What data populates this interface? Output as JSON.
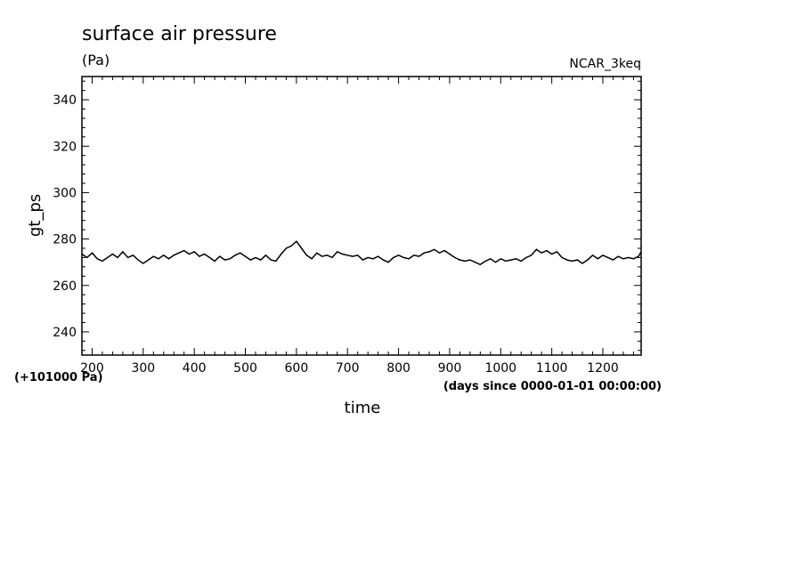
{
  "chart_data": {
    "type": "line",
    "title": "surface air pressure",
    "units": "(Pa)",
    "experiment": "NCAR_3keq",
    "xlabel": "time",
    "xunits": "(days since 0000-01-01 00:00:00)",
    "ylabel": "gt_ps",
    "yoffset_label": "(+101000 Pa)",
    "xlim": [
      180,
      1275
    ],
    "ylim": [
      230,
      350
    ],
    "xticks": [
      "200",
      "300",
      "400",
      "500",
      "600",
      "700",
      "800",
      "900",
      "1000",
      "1100",
      "1200"
    ],
    "yticks": [
      "240",
      "260",
      "280",
      "300",
      "320",
      "340"
    ],
    "grid": false,
    "series": [
      {
        "x": [
          180,
          190,
          200,
          210,
          220,
          230,
          240,
          250,
          260,
          270,
          280,
          290,
          300,
          310,
          320,
          330,
          340,
          350,
          360,
          370,
          380,
          390,
          400,
          410,
          420,
          430,
          440,
          450,
          460,
          470,
          480,
          490,
          500,
          510,
          520,
          530,
          540,
          550,
          560,
          570,
          580,
          590,
          600,
          610,
          620,
          630,
          640,
          650,
          660,
          670,
          680,
          690,
          700,
          710,
          720,
          730,
          740,
          750,
          760,
          770,
          780,
          790,
          800,
          810,
          820,
          830,
          840,
          850,
          860,
          870,
          880,
          890,
          900,
          910,
          920,
          930,
          940,
          950,
          960,
          970,
          980,
          990,
          1000,
          1010,
          1020,
          1030,
          1040,
          1050,
          1060,
          1070,
          1080,
          1090,
          1100,
          1110,
          1120,
          1130,
          1140,
          1150,
          1160,
          1170,
          1180,
          1190,
          1200,
          1210,
          1220,
          1230,
          1240,
          1250,
          1260,
          1270,
          1275
        ],
        "y": [
          273.5,
          272,
          274,
          271.5,
          270.5,
          272,
          273.5,
          272,
          274.5,
          272,
          273,
          271,
          269.5,
          271,
          272.5,
          271.5,
          273,
          271.5,
          273,
          274,
          275,
          273.5,
          274.5,
          272.5,
          273.5,
          272,
          270.5,
          272.5,
          271,
          271.5,
          273,
          274,
          272.5,
          271,
          272,
          271,
          273,
          271,
          270.5,
          273.5,
          276,
          277,
          279,
          276,
          273,
          271.5,
          274,
          272.5,
          273,
          272,
          274.5,
          273.5,
          273,
          272.5,
          273,
          271,
          272,
          271.5,
          272.5,
          271,
          270,
          272,
          273,
          272,
          271.5,
          273,
          272.5,
          274,
          274.5,
          275.5,
          274,
          275,
          273.5,
          272,
          271,
          270.5,
          271,
          270,
          269,
          270.5,
          271.5,
          270,
          271.5,
          270.5,
          271,
          271.5,
          270.5,
          272,
          273,
          275.5,
          274,
          275,
          273.5,
          274.5,
          272,
          271,
          270.5,
          271,
          269.5,
          271,
          273,
          271.5,
          273,
          272,
          271,
          272.5,
          271.5,
          272,
          271.5,
          272.5,
          274.5
        ]
      }
    ]
  }
}
